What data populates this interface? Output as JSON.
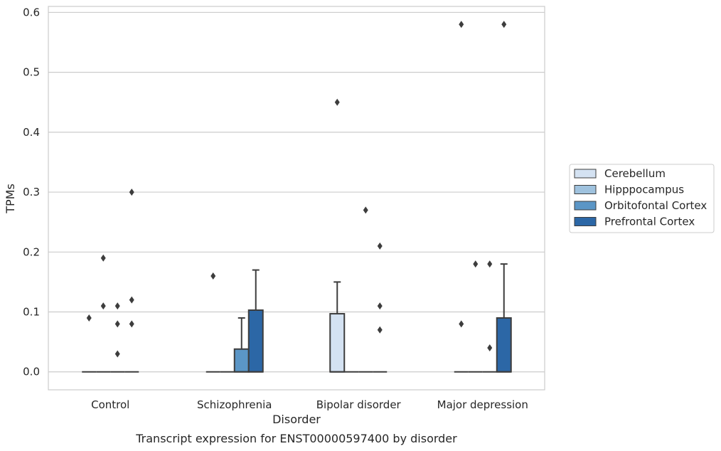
{
  "chart_data": {
    "type": "box",
    "xlabel": "Disorder",
    "ylabel": "TPMs",
    "caption": "Transcript expression for ENST00000597400 by disorder",
    "ylim": [
      -0.03,
      0.61
    ],
    "yticks": [
      "0.0",
      "0.1",
      "0.2",
      "0.3",
      "0.4",
      "0.5",
      "0.6"
    ],
    "grid": "horizontal",
    "legend_position": "right",
    "categories": [
      "Control",
      "Schizophrenia",
      "Bipolar disorder",
      "Major depression"
    ],
    "series": [
      {
        "name": "Cerebellum",
        "color": "#d4e2f2"
      },
      {
        "name": "Hipppocampus",
        "color": "#9fc2de"
      },
      {
        "name": "Orbitofontal Cortex",
        "color": "#5b96c6"
      },
      {
        "name": "Prefrontal Cortex",
        "color": "#2c67a6"
      }
    ],
    "boxes": [
      {
        "category": 0,
        "series": 0,
        "q1": 0,
        "median": 0,
        "q3": 0,
        "whisker_low": 0,
        "whisker_high": 0,
        "outliers": [
          0.09
        ]
      },
      {
        "category": 0,
        "series": 1,
        "q1": 0,
        "median": 0,
        "q3": 0,
        "whisker_low": 0,
        "whisker_high": 0,
        "outliers": [
          0.19,
          0.11
        ]
      },
      {
        "category": 0,
        "series": 2,
        "q1": 0,
        "median": 0,
        "q3": 0,
        "whisker_low": 0,
        "whisker_high": 0,
        "outliers": [
          0.11,
          0.08,
          0.03
        ]
      },
      {
        "category": 0,
        "series": 3,
        "q1": 0,
        "median": 0,
        "q3": 0,
        "whisker_low": 0,
        "whisker_high": 0,
        "outliers": [
          0.3,
          0.12,
          0.08
        ]
      },
      {
        "category": 1,
        "series": 0,
        "q1": 0,
        "median": 0,
        "q3": 0,
        "whisker_low": 0,
        "whisker_high": 0,
        "outliers": [
          0.16
        ]
      },
      {
        "category": 1,
        "series": 1,
        "q1": 0,
        "median": 0,
        "q3": 0,
        "whisker_low": 0,
        "whisker_high": 0,
        "outliers": []
      },
      {
        "category": 1,
        "series": 2,
        "q1": 0,
        "median": 0,
        "q3": 0.038,
        "whisker_low": 0,
        "whisker_high": 0.09,
        "outliers": []
      },
      {
        "category": 1,
        "series": 3,
        "q1": 0,
        "median": 0,
        "q3": 0.103,
        "whisker_low": 0,
        "whisker_high": 0.17,
        "outliers": []
      },
      {
        "category": 2,
        "series": 0,
        "q1": 0,
        "median": 0,
        "q3": 0.097,
        "whisker_low": 0,
        "whisker_high": 0.15,
        "outliers": [
          0.45
        ]
      },
      {
        "category": 2,
        "series": 1,
        "q1": 0,
        "median": 0,
        "q3": 0,
        "whisker_low": 0,
        "whisker_high": 0,
        "outliers": []
      },
      {
        "category": 2,
        "series": 2,
        "q1": 0,
        "median": 0,
        "q3": 0,
        "whisker_low": 0,
        "whisker_high": 0,
        "outliers": [
          0.27
        ]
      },
      {
        "category": 2,
        "series": 3,
        "q1": 0,
        "median": 0,
        "q3": 0,
        "whisker_low": 0,
        "whisker_high": 0,
        "outliers": [
          0.21,
          0.11,
          0.07
        ]
      },
      {
        "category": 3,
        "series": 0,
        "q1": 0,
        "median": 0,
        "q3": 0,
        "whisker_low": 0,
        "whisker_high": 0,
        "outliers": [
          0.58,
          0.08
        ]
      },
      {
        "category": 3,
        "series": 1,
        "q1": 0,
        "median": 0,
        "q3": 0,
        "whisker_low": 0,
        "whisker_high": 0,
        "outliers": [
          0.18
        ]
      },
      {
        "category": 3,
        "series": 2,
        "q1": 0,
        "median": 0,
        "q3": 0,
        "whisker_low": 0,
        "whisker_high": 0,
        "outliers": [
          0.18,
          0.04
        ]
      },
      {
        "category": 3,
        "series": 3,
        "q1": 0,
        "median": 0,
        "q3": 0.09,
        "whisker_low": 0,
        "whisker_high": 0.18,
        "outliers": [
          0.58
        ]
      }
    ]
  }
}
